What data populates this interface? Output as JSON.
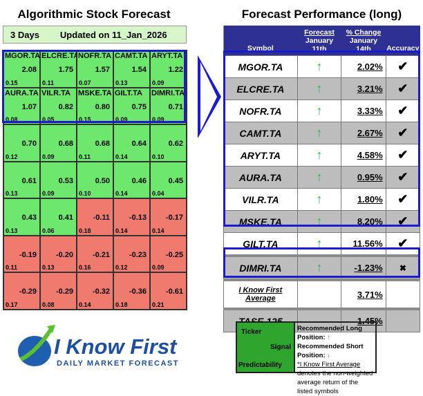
{
  "left": {
    "title": "Algorithmic Stock Forecast",
    "horizon": "3 Days",
    "updated": "Updated on 11_Jan_2026",
    "cells": [
      {
        "t": "MGOR.TA",
        "s": "2.08",
        "p": "0.15",
        "c": "g"
      },
      {
        "t": "ELCRE.TA",
        "s": "1.75",
        "p": "0.11",
        "c": "g"
      },
      {
        "t": "NOFR.TA",
        "s": "1.57",
        "p": "0.07",
        "c": "g"
      },
      {
        "t": "CAMT.TA",
        "s": "1.54",
        "p": "0.13",
        "c": "g"
      },
      {
        "t": "ARYT.TA",
        "s": "1.22",
        "p": "0.09",
        "c": "g"
      },
      {
        "t": "AURA.TA",
        "s": "1.07",
        "p": "0.08",
        "c": "g"
      },
      {
        "t": "VILR.TA",
        "s": "0.82",
        "p": "0.05",
        "c": "g"
      },
      {
        "t": "MSKE.TA",
        "s": "0.80",
        "p": "0.15",
        "c": "g"
      },
      {
        "t": "GILT.TA",
        "s": "0.75",
        "p": "0.09",
        "c": "g"
      },
      {
        "t": "DIMRI.TA",
        "s": "0.71",
        "p": "0.09",
        "c": "g"
      },
      {
        "t": "",
        "s": "0.70",
        "p": "0.12",
        "c": "g"
      },
      {
        "t": "",
        "s": "0.68",
        "p": "0.09",
        "c": "g"
      },
      {
        "t": "",
        "s": "0.68",
        "p": "0.11",
        "c": "g"
      },
      {
        "t": "",
        "s": "0.64",
        "p": "0.14",
        "c": "g"
      },
      {
        "t": "",
        "s": "0.62",
        "p": "0.10",
        "c": "g"
      },
      {
        "t": "",
        "s": "0.61",
        "p": "0.13",
        "c": "g"
      },
      {
        "t": "",
        "s": "0.53",
        "p": "0.09",
        "c": "g"
      },
      {
        "t": "",
        "s": "0.50",
        "p": "0.10",
        "c": "g"
      },
      {
        "t": "",
        "s": "0.46",
        "p": "0.14",
        "c": "g"
      },
      {
        "t": "",
        "s": "0.45",
        "p": "0.04",
        "c": "g"
      },
      {
        "t": "",
        "s": "0.43",
        "p": "0.13",
        "c": "g"
      },
      {
        "t": "",
        "s": "0.41",
        "p": "0.06",
        "c": "g"
      },
      {
        "t": "",
        "s": "-0.11",
        "p": "0.18",
        "c": "r"
      },
      {
        "t": "",
        "s": "-0.13",
        "p": "0.14",
        "c": "r"
      },
      {
        "t": "",
        "s": "-0.17",
        "p": "0.14",
        "c": "r"
      },
      {
        "t": "",
        "s": "-0.19",
        "p": "0.11",
        "c": "r"
      },
      {
        "t": "",
        "s": "-0.20",
        "p": "0.13",
        "c": "r"
      },
      {
        "t": "",
        "s": "-0.21",
        "p": "0.16",
        "c": "r"
      },
      {
        "t": "",
        "s": "-0.23",
        "p": "0.12",
        "c": "r"
      },
      {
        "t": "",
        "s": "-0.25",
        "p": "0.09",
        "c": "r"
      },
      {
        "t": "",
        "s": "-0.29",
        "p": "0.17",
        "c": "r"
      },
      {
        "t": "",
        "s": "-0.29",
        "p": "0.08",
        "c": "r"
      },
      {
        "t": "",
        "s": "-0.32",
        "p": "0.14",
        "c": "r"
      },
      {
        "t": "",
        "s": "-0.36",
        "p": "0.18",
        "c": "r"
      },
      {
        "t": "",
        "s": "-0.61",
        "p": "0.21",
        "c": "r"
      }
    ]
  },
  "right": {
    "title": "Forecast Performance (long)",
    "headers": {
      "symbol": "Symbol",
      "forecast": "Forecast",
      "forecast_date": "January 11th",
      "change": "% Change",
      "change_date": "January 14th",
      "accuracy": "Accuracy"
    },
    "rows": [
      {
        "sym": "MGOR.TA",
        "sig": "↑",
        "chg": "2.02%",
        "acc": "✔"
      },
      {
        "sym": "ELCRE.TA",
        "sig": "↑",
        "chg": "3.21%",
        "acc": "✔"
      },
      {
        "sym": "NOFR.TA",
        "sig": "↑",
        "chg": "3.33%",
        "acc": "✔"
      },
      {
        "sym": "CAMT.TA",
        "sig": "↑",
        "chg": "2.67%",
        "acc": "✔"
      },
      {
        "sym": "ARYT.TA",
        "sig": "↑",
        "chg": "4.58%",
        "acc": "✔"
      },
      {
        "sym": "AURA.TA",
        "sig": "↑",
        "chg": "0.95%",
        "acc": "✔"
      },
      {
        "sym": "VILR.TA",
        "sig": "↑",
        "chg": "1.80%",
        "acc": "✔"
      },
      {
        "sym": "MSKE.TA",
        "sig": "↑",
        "chg": "8.20%",
        "acc": "✔"
      },
      {
        "sym": "GILT.TA",
        "sig": "↑",
        "chg": "11.56%",
        "acc": "✔"
      },
      {
        "sym": "DIMRI.TA",
        "sig": "↑",
        "chg": "-1.23%",
        "acc": "✖"
      }
    ],
    "average": {
      "label": "I Know First Average",
      "value": "3.71%"
    },
    "index": {
      "label": "TASE 125",
      "value": "1.45%"
    }
  },
  "logo": {
    "brand": "I Know First",
    "tagline": "Daily Market Forecast"
  },
  "legend": {
    "ticker": "Ticker",
    "signal": "Signal",
    "predictability": "Predictability",
    "long": "Recommended Long Position:",
    "short": "Recommended Short Position:",
    "note_link": "*I Know First Average",
    "note": " denotes the non-weighted average return of the listed symbols"
  },
  "colors": {
    "green": "#6de86d",
    "red": "#f07a6e",
    "navy": "#2e3192",
    "highlight": "#1a1ad0"
  }
}
